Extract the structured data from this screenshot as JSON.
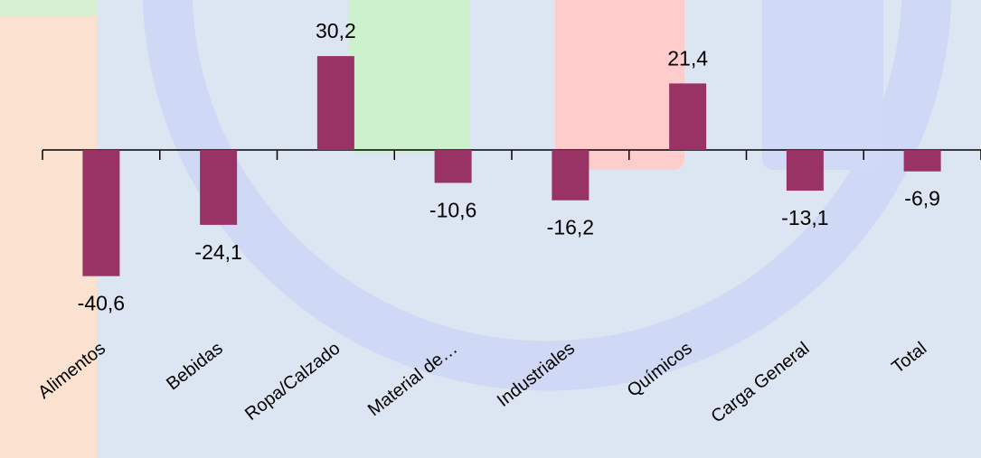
{
  "colors": {
    "background": "#dce6f2",
    "bar": "#993366",
    "axis": "#000000",
    "panel_peach": "#fbe2d0",
    "panel_green": "#ccf1cc",
    "panel_pink": "#ffcccc",
    "panel_lavender": "#d0daf6",
    "ring": "#cfd8f4"
  },
  "chart_data": {
    "type": "bar",
    "title": "",
    "xlabel": "",
    "ylabel": "",
    "categories": [
      "Alimentos",
      "Bebidas",
      "Ropa/Calzado",
      "Material de…",
      "Industriales",
      "Químicos",
      "Carga General",
      "Total"
    ],
    "values": [
      -40.6,
      -24.1,
      30.2,
      -10.6,
      -16.2,
      21.4,
      -13.1,
      -6.9
    ],
    "value_labels": [
      "-40,6",
      "-24,1",
      "30,2",
      "-10,6",
      "-16,2",
      "21,4",
      "-13,1",
      "-6,9"
    ],
    "ylim": [
      -45,
      35
    ],
    "grid": false,
    "legend": "none"
  }
}
